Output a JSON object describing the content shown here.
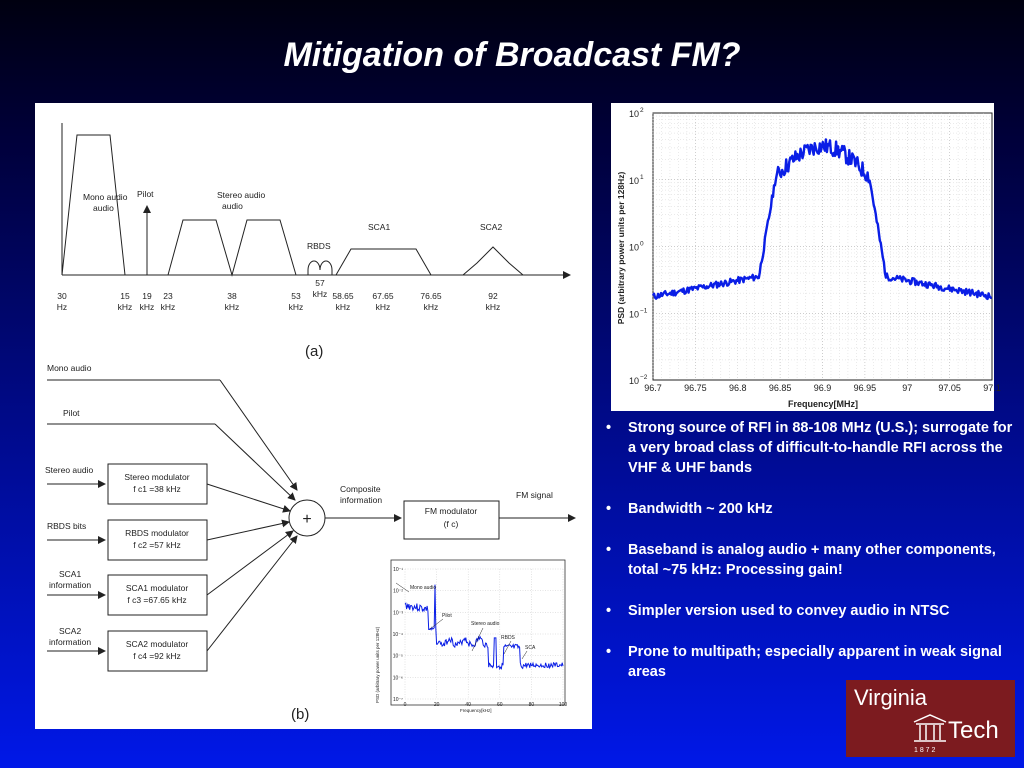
{
  "slide": {
    "title": "Mitigation of Broadcast FM?"
  },
  "figure_a": {
    "caption": "(a)",
    "bands": [
      "Mono audio",
      "Pilot",
      "Stereo audio",
      "RBDS",
      "SCA1",
      "SCA2"
    ],
    "ticks": [
      {
        "num": "30",
        "unit": "Hz"
      },
      {
        "num": "15",
        "unit": "kHz"
      },
      {
        "num": "19",
        "unit": "kHz"
      },
      {
        "num": "23",
        "unit": "kHz"
      },
      {
        "num": "38",
        "unit": "kHz"
      },
      {
        "num": "53",
        "unit": "kHz"
      },
      {
        "num": "57",
        "unit": "kHz"
      },
      {
        "num": "58.65",
        "unit": "kHz"
      },
      {
        "num": "67.65",
        "unit": "kHz"
      },
      {
        "num": "76.65",
        "unit": "kHz"
      },
      {
        "num": "92",
        "unit": "kHz"
      }
    ]
  },
  "figure_b": {
    "caption": "(b)",
    "inputs": [
      "Mono audio",
      "Pilot",
      "Stereo audio",
      "RBDS bits",
      "SCA1",
      "information",
      "SCA2",
      "information"
    ],
    "modulators": [
      {
        "name": "Stereo modulator",
        "freq": "f c1 =38 kHz"
      },
      {
        "name": "RBDS modulator",
        "freq": "f c2 =57 kHz"
      },
      {
        "name": "SCA1 modulator",
        "freq": "f c3 =67.65 kHz"
      },
      {
        "name": "SCA2 modulator",
        "freq": "f c4 =92 kHz"
      }
    ],
    "sum": "+",
    "composite": [
      "Composite",
      "information"
    ],
    "fm_modulator": {
      "name": "FM modulator",
      "freq": "(f c)"
    },
    "output": "FM signal",
    "inset": {
      "ylabel": "PSD (arbitrary power units per 128Hz)",
      "xlabel": "Frequency[kHz]",
      "yticks": [
        "10⁻¹",
        "10⁻²",
        "10⁻³",
        "10⁻⁴",
        "10⁻⁵",
        "10⁻⁶",
        "10⁻⁷"
      ],
      "xticks": [
        "0",
        "20",
        "40",
        "60",
        "80",
        "100"
      ],
      "annotations": [
        "Mono audio",
        "Pilot",
        "Stereo audio",
        "RBDS",
        "SCA"
      ]
    }
  },
  "psd_plot": {
    "ylabel": "PSD (arbitrary power units per 128Hz)",
    "xlabel": "Frequency[MHz]",
    "xticks": [
      "96.7",
      "96.75",
      "96.8",
      "96.85",
      "96.9",
      "96.95",
      "97",
      "97.05",
      "97.1"
    ],
    "yticks": [
      {
        "base": "10",
        "exp": "2"
      },
      {
        "base": "10",
        "exp": "1"
      },
      {
        "base": "10",
        "exp": "0"
      },
      {
        "base": "10",
        "exp": "−1"
      },
      {
        "base": "10",
        "exp": "−2"
      }
    ],
    "line_color": "#0a1ee6"
  },
  "bullets": [
    "Strong source of RFI in 88-108 MHz (U.S.); surrogate for a very broad class of difficult-to-handle RFI across the VHF & UHF bands",
    "Bandwidth ~ 200 kHz",
    "Baseband is analog audio + many other components, total ~75 kHz:  Processing gain!",
    "Simpler version used to convey audio in NTSC",
    "Prone to multipath; especially apparent in weak signal areas"
  ],
  "logo": {
    "line1": "Virginia",
    "line2": "Tech",
    "year": "1 8 7 2",
    "bg": "#7c1b1f"
  }
}
